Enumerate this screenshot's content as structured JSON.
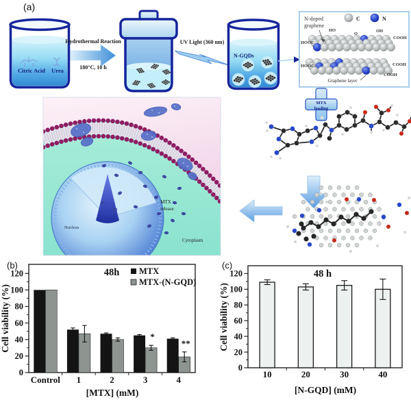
{
  "figure": {
    "panel_a": {
      "label": "(a)",
      "reactants_beaker": {
        "reactant1": "Citric Acid",
        "reactant2": "Urea"
      },
      "arrow_hydrothermal": {
        "label_top": "Hydrothermal Reaction",
        "label_bottom": "180°C, 10 h"
      },
      "uv_label": "UV Light (360 nm)",
      "gqd_beaker_label": "N-GQDs",
      "graphene_box": {
        "title_line1": "N-doped",
        "title_line2": "graphene",
        "legend_c": "C",
        "legend_n": "N",
        "bottom_label": "Graphene layer",
        "functional_groups": [
          "HO",
          "O",
          "OH",
          "COOH",
          "HOOC",
          "HOOC",
          "COOH",
          "COOH"
        ]
      },
      "mtx_loading": {
        "line1": "MTX",
        "line2": "loading"
      },
      "cell": {
        "mtx_release_line1": "MTX",
        "mtx_release_line2": "release",
        "nucleus": "Nucleus",
        "cytoplasm": "Cytoplasm"
      },
      "colors": {
        "outline_navy": "#16259b",
        "liquid_blue": "#55ace6",
        "carbon_gray": "#b9bdbd",
        "nitrogen_blue": "#2a46cc",
        "membrane_magenta": "#8e1d63"
      }
    }
  },
  "chart_data": [
    {
      "id": "b",
      "type": "bar",
      "panel_label": "(b)",
      "title": "48h",
      "categories": [
        "Control",
        "1",
        "2",
        "3",
        "4"
      ],
      "series": [
        {
          "name": "MTX",
          "color": "#141414",
          "values": [
            100,
            52,
            47,
            45,
            41
          ],
          "errors": [
            0,
            2,
            1,
            1,
            1
          ]
        },
        {
          "name": "MTX-(N-GQD)",
          "color": "#8e948f",
          "stroke": "#222222",
          "values": [
            100,
            47,
            40,
            30,
            19
          ],
          "errors": [
            0,
            10,
            2,
            3,
            6
          ]
        }
      ],
      "annotations": [
        {
          "category_index": 3,
          "series_index": 1,
          "text": "*"
        },
        {
          "category_index": 4,
          "series_index": 1,
          "text": "**"
        }
      ],
      "xlabel": "[MTX] (mM)",
      "ylabel": "Cell viability (%)",
      "ylim": [
        0,
        131
      ],
      "yticks": [
        0,
        20,
        40,
        60,
        80,
        100,
        120
      ],
      "legend_position": "top-right",
      "grid": false
    },
    {
      "id": "c",
      "type": "bar",
      "panel_label": "(c)",
      "title": "48 h",
      "categories": [
        "10",
        "20",
        "30",
        "40"
      ],
      "series": [
        {
          "name": "N-GQD",
          "color": "#edf1ef",
          "stroke": "#1a1a1a",
          "values": [
            109,
            103,
            105,
            100
          ],
          "errors": [
            3,
            4,
            6,
            13
          ]
        }
      ],
      "annotations": [],
      "xlabel": "[N-GQD] (mM)",
      "ylabel": "Cell viability (%)",
      "ylim": [
        0,
        130
      ],
      "yticks": [
        0,
        20,
        40,
        60,
        80,
        100,
        120
      ],
      "legend_position": "none",
      "grid": false
    }
  ]
}
